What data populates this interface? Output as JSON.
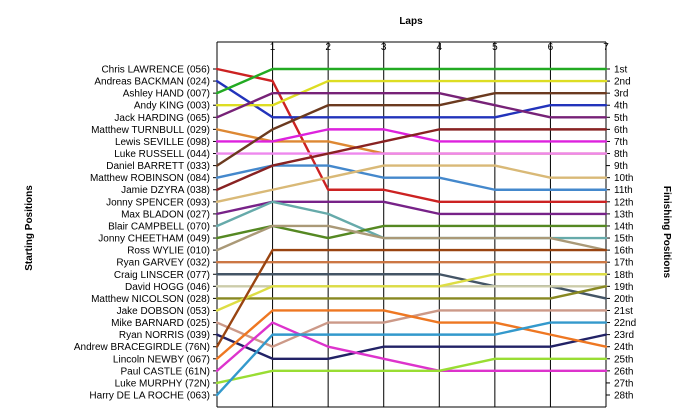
{
  "chart_data": {
    "type": "line",
    "title": "",
    "xlabel": "Laps",
    "ylabel_left": "Starting Positions",
    "ylabel_right": "Finishing Positions",
    "x": [
      0,
      1,
      2,
      3,
      4,
      5,
      6,
      7
    ],
    "x_tick_labels": [
      "1",
      "2",
      "3",
      "4",
      "5",
      "6",
      "7"
    ],
    "ylim": [
      1,
      28
    ],
    "grid": false,
    "left_labels": [
      "Chris LAWRENCE (056)",
      "Andreas BACKMAN (024)",
      "Ashley HAND (007)",
      "Andy KING (003)",
      "Jack HARDING (065)",
      "Matthew TURNBULL (029)",
      "Lewis SEVILLE (098)",
      "Luke RUSSELL (044)",
      "Daniel BARRETT (033)",
      "Matthew ROBINSON (084)",
      "Jamie DZYRA (038)",
      "Jonny SPENCER (093)",
      "Max BLADON (027)",
      "Blair CAMPBELL (070)",
      "Jonny CHEETHAM (049)",
      "Ross WYLIE (010)",
      "Ryan GARVEY (032)",
      "Craig LINSCER (077)",
      "David HOGG (046)",
      "Matthew NICOLSON (028)",
      "Jake DOBSON (053)",
      "Mike BARNARD (025)",
      "Ryan NORRIS (039)",
      "Andrew BRACEGIRDLE (76N)",
      "Lincoln NEWBY (067)",
      "Paul CASTLE (61N)",
      "Luke MURPHY (72N)",
      "Harry DE LA ROCHE (063)"
    ],
    "right_labels": [
      "1st",
      "2nd",
      "3rd",
      "4th",
      "5th",
      "6th",
      "7th",
      "8th",
      "9th",
      "10th",
      "11th",
      "12th",
      "13th",
      "14th",
      "15th",
      "16th",
      "17th",
      "18th",
      "19th",
      "20th",
      "21st",
      "22nd",
      "23rd",
      "24th",
      "25th",
      "26th",
      "27th",
      "28th"
    ],
    "series": [
      {
        "color": "#cc2222",
        "values": [
          1,
          2,
          11,
          11,
          12,
          12,
          12,
          12
        ]
      },
      {
        "color": "#2233bb",
        "values": [
          2,
          5,
          5,
          5,
          5,
          5,
          4,
          4
        ]
      },
      {
        "color": "#22aa22",
        "values": [
          3,
          1,
          1,
          1,
          1,
          1,
          1,
          1
        ]
      },
      {
        "color": "#dddd22",
        "values": [
          4,
          4,
          2,
          2,
          2,
          2,
          2,
          2
        ]
      },
      {
        "color": "#772277",
        "values": [
          5,
          3,
          3,
          3,
          3,
          4,
          5,
          5
        ]
      },
      {
        "color": "#dd8833",
        "values": [
          6,
          7,
          7,
          8,
          8,
          8,
          8,
          8
        ]
      },
      {
        "color": "#dd22dd",
        "values": [
          7,
          7,
          6,
          6,
          7,
          7,
          7,
          7
        ]
      },
      {
        "color": "#ee88ee",
        "values": [
          8,
          8,
          8,
          8,
          8,
          8,
          8,
          8
        ]
      },
      {
        "color": "#6b3a1f",
        "values": [
          9,
          6,
          4,
          4,
          4,
          3,
          3,
          3
        ]
      },
      {
        "color": "#4488cc",
        "values": [
          10,
          9,
          9,
          10,
          10,
          11,
          11,
          11
        ]
      },
      {
        "color": "#882222",
        "values": [
          11,
          9,
          8,
          7,
          6,
          6,
          6,
          6
        ]
      },
      {
        "color": "#d9b977",
        "values": [
          12,
          11,
          10,
          9,
          9,
          9,
          10,
          10
        ]
      },
      {
        "color": "#772288",
        "values": [
          13,
          12,
          12,
          12,
          13,
          13,
          13,
          13
        ]
      },
      {
        "color": "#66aaaa",
        "values": [
          14,
          12,
          13,
          15,
          15,
          15,
          15,
          15
        ]
      },
      {
        "color": "#558822",
        "values": [
          15,
          14,
          15,
          14,
          14,
          14,
          14,
          14
        ]
      },
      {
        "color": "#aa9977",
        "values": [
          16,
          14,
          14,
          15,
          15,
          15,
          15,
          16
        ]
      },
      {
        "color": "#cc7744",
        "values": [
          17,
          17,
          17,
          17,
          17,
          17,
          17,
          17
        ]
      },
      {
        "color": "#445566",
        "values": [
          18,
          18,
          18,
          18,
          18,
          19,
          19,
          20
        ]
      },
      {
        "color": "#ccccaa",
        "values": [
          19,
          19,
          19,
          19,
          19,
          19,
          19,
          19
        ]
      },
      {
        "color": "#888822",
        "values": [
          20,
          20,
          20,
          20,
          20,
          20,
          20,
          19
        ]
      },
      {
        "color": "#dddd44",
        "values": [
          21,
          19,
          19,
          19,
          19,
          18,
          18,
          18
        ]
      },
      {
        "color": "#cc9988",
        "values": [
          22,
          24,
          22,
          22,
          21,
          21,
          21,
          21
        ]
      },
      {
        "color": "#222266",
        "values": [
          23,
          25,
          25,
          24,
          24,
          24,
          24,
          23
        ]
      },
      {
        "color": "#994411",
        "values": [
          24,
          16,
          16,
          16,
          16,
          16,
          16,
          16
        ]
      },
      {
        "color": "#ee7722",
        "values": [
          25,
          21,
          21,
          21,
          22,
          22,
          23,
          24
        ]
      },
      {
        "color": "#dd33cc",
        "values": [
          26,
          22,
          24,
          25,
          26,
          26,
          26,
          26
        ]
      },
      {
        "color": "#99dd33",
        "values": [
          27,
          26,
          26,
          26,
          26,
          25,
          25,
          25
        ]
      },
      {
        "color": "#3399cc",
        "values": [
          28,
          23,
          23,
          23,
          23,
          23,
          22,
          22
        ]
      }
    ]
  }
}
